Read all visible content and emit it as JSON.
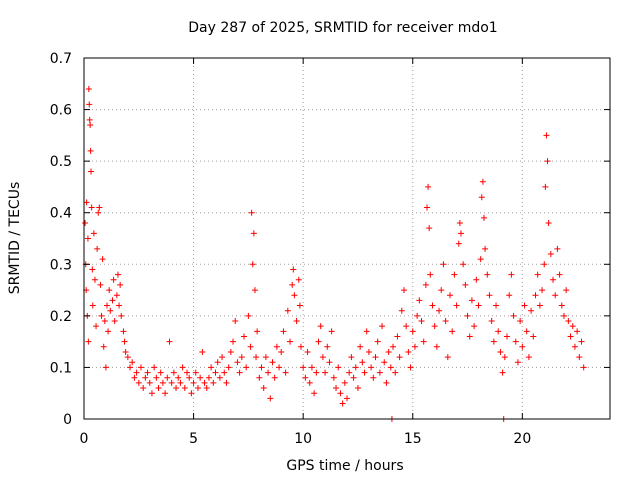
{
  "chart_data": {
    "type": "scatter",
    "title": "Day 287 of 2025, SRMTID for receiver mdo1",
    "xlabel": "GPS time / hours",
    "ylabel": "SRMTID / TECUs",
    "xlim": [
      0,
      24
    ],
    "ylim": [
      0,
      0.7
    ],
    "xticks": [
      0,
      5,
      10,
      15,
      20
    ],
    "xtick_labels": [
      "0",
      "5",
      "10",
      "15",
      "20"
    ],
    "yticks": [
      0,
      0.1,
      0.2,
      0.3,
      0.4,
      0.5,
      0.6,
      0.7
    ],
    "ytick_labels": [
      "0",
      "0.1",
      "0.2",
      "0.3",
      "0.4",
      "0.5",
      "0.6",
      "0.7"
    ],
    "grid": true,
    "marker": "plus",
    "color": "#ff0000",
    "series": [
      {
        "name": "SRMTID",
        "points": [
          [
            0.05,
            0.38
          ],
          [
            0.08,
            0.3
          ],
          [
            0.1,
            0.25
          ],
          [
            0.12,
            0.42
          ],
          [
            0.15,
            0.2
          ],
          [
            0.18,
            0.35
          ],
          [
            0.2,
            0.15
          ],
          [
            0.22,
            0.64
          ],
          [
            0.24,
            0.61
          ],
          [
            0.26,
            0.58
          ],
          [
            0.28,
            0.57
          ],
          [
            0.3,
            0.52
          ],
          [
            0.32,
            0.48
          ],
          [
            0.35,
            0.41
          ],
          [
            0.38,
            0.29
          ],
          [
            0.4,
            0.22
          ],
          [
            0.45,
            0.36
          ],
          [
            0.5,
            0.27
          ],
          [
            0.55,
            0.18
          ],
          [
            0.6,
            0.33
          ],
          [
            0.65,
            0.4
          ],
          [
            0.7,
            0.41
          ],
          [
            0.75,
            0.26
          ],
          [
            0.8,
            0.2
          ],
          [
            0.85,
            0.31
          ],
          [
            0.9,
            0.14
          ],
          [
            0.95,
            0.19
          ],
          [
            1.0,
            0.1
          ],
          [
            1.05,
            0.22
          ],
          [
            1.1,
            0.17
          ],
          [
            1.15,
            0.25
          ],
          [
            1.2,
            0.21
          ],
          [
            1.3,
            0.23
          ],
          [
            1.35,
            0.27
          ],
          [
            1.4,
            0.19
          ],
          [
            1.5,
            0.24
          ],
          [
            1.55,
            0.28
          ],
          [
            1.6,
            0.22
          ],
          [
            1.65,
            0.26
          ],
          [
            1.7,
            0.2
          ],
          [
            1.8,
            0.17
          ],
          [
            1.85,
            0.15
          ],
          [
            1.9,
            0.13
          ],
          [
            2.0,
            0.12
          ],
          [
            2.1,
            0.1
          ],
          [
            2.2,
            0.11
          ],
          [
            2.3,
            0.08
          ],
          [
            2.4,
            0.09
          ],
          [
            2.5,
            0.07
          ],
          [
            2.6,
            0.1
          ],
          [
            2.7,
            0.06
          ],
          [
            2.8,
            0.08
          ],
          [
            2.9,
            0.09
          ],
          [
            3.0,
            0.07
          ],
          [
            3.1,
            0.05
          ],
          [
            3.2,
            0.1
          ],
          [
            3.3,
            0.08
          ],
          [
            3.4,
            0.06
          ],
          [
            3.5,
            0.09
          ],
          [
            3.6,
            0.07
          ],
          [
            3.7,
            0.05
          ],
          [
            3.8,
            0.08
          ],
          [
            3.9,
            0.15
          ],
          [
            4.0,
            0.07
          ],
          [
            4.1,
            0.09
          ],
          [
            4.2,
            0.06
          ],
          [
            4.3,
            0.08
          ],
          [
            4.4,
            0.07
          ],
          [
            4.5,
            0.1
          ],
          [
            4.6,
            0.06
          ],
          [
            4.7,
            0.09
          ],
          [
            4.8,
            0.08
          ],
          [
            4.9,
            0.05
          ],
          [
            5.0,
            0.07
          ],
          [
            5.1,
            0.09
          ],
          [
            5.2,
            0.06
          ],
          [
            5.3,
            0.08
          ],
          [
            5.4,
            0.13
          ],
          [
            5.5,
            0.07
          ],
          [
            5.6,
            0.06
          ],
          [
            5.7,
            0.08
          ],
          [
            5.8,
            0.1
          ],
          [
            5.9,
            0.07
          ],
          [
            6.0,
            0.09
          ],
          [
            6.1,
            0.11
          ],
          [
            6.2,
            0.08
          ],
          [
            6.3,
            0.12
          ],
          [
            6.4,
            0.09
          ],
          [
            6.5,
            0.07
          ],
          [
            6.6,
            0.1
          ],
          [
            6.7,
            0.13
          ],
          [
            6.8,
            0.15
          ],
          [
            6.9,
            0.19
          ],
          [
            7.0,
            0.11
          ],
          [
            7.1,
            0.09
          ],
          [
            7.2,
            0.12
          ],
          [
            7.3,
            0.16
          ],
          [
            7.4,
            0.1
          ],
          [
            7.5,
            0.2
          ],
          [
            7.6,
            0.14
          ],
          [
            7.65,
            0.4
          ],
          [
            7.7,
            0.3
          ],
          [
            7.75,
            0.36
          ],
          [
            7.8,
            0.25
          ],
          [
            7.85,
            0.12
          ],
          [
            7.9,
            0.17
          ],
          [
            8.0,
            0.08
          ],
          [
            8.1,
            0.1
          ],
          [
            8.2,
            0.06
          ],
          [
            8.3,
            0.12
          ],
          [
            8.4,
            0.09
          ],
          [
            8.5,
            0.04
          ],
          [
            8.6,
            0.11
          ],
          [
            8.7,
            0.08
          ],
          [
            8.8,
            0.14
          ],
          [
            8.9,
            0.1
          ],
          [
            9.0,
            0.13
          ],
          [
            9.1,
            0.17
          ],
          [
            9.2,
            0.09
          ],
          [
            9.3,
            0.21
          ],
          [
            9.4,
            0.15
          ],
          [
            9.5,
            0.26
          ],
          [
            9.55,
            0.29
          ],
          [
            9.6,
            0.24
          ],
          [
            9.7,
            0.19
          ],
          [
            9.8,
            0.27
          ],
          [
            9.85,
            0.22
          ],
          [
            9.9,
            0.14
          ],
          [
            10.0,
            0.1
          ],
          [
            10.1,
            0.08
          ],
          [
            10.2,
            0.13
          ],
          [
            10.3,
            0.07
          ],
          [
            10.4,
            0.1
          ],
          [
            10.5,
            0.05
          ],
          [
            10.6,
            0.09
          ],
          [
            10.7,
            0.15
          ],
          [
            10.8,
            0.18
          ],
          [
            10.9,
            0.12
          ],
          [
            11.0,
            0.09
          ],
          [
            11.1,
            0.14
          ],
          [
            11.2,
            0.11
          ],
          [
            11.3,
            0.17
          ],
          [
            11.4,
            0.08
          ],
          [
            11.5,
            0.06
          ],
          [
            11.6,
            0.1
          ],
          [
            11.7,
            0.05
          ],
          [
            11.8,
            0.03
          ],
          [
            11.9,
            0.07
          ],
          [
            12.0,
            0.04
          ],
          [
            12.1,
            0.09
          ],
          [
            12.2,
            0.12
          ],
          [
            12.3,
            0.08
          ],
          [
            12.4,
            0.1
          ],
          [
            12.5,
            0.06
          ],
          [
            12.6,
            0.14
          ],
          [
            12.7,
            0.11
          ],
          [
            12.8,
            0.09
          ],
          [
            12.9,
            0.17
          ],
          [
            13.0,
            0.13
          ],
          [
            13.1,
            0.1
          ],
          [
            13.2,
            0.08
          ],
          [
            13.3,
            0.12
          ],
          [
            13.4,
            0.15
          ],
          [
            13.5,
            0.09
          ],
          [
            13.6,
            0.18
          ],
          [
            13.7,
            0.11
          ],
          [
            13.8,
            0.07
          ],
          [
            13.9,
            0.13
          ],
          [
            14.0,
            0.1
          ],
          [
            14.05,
            0.0
          ],
          [
            14.1,
            0.14
          ],
          [
            14.2,
            0.09
          ],
          [
            14.3,
            0.16
          ],
          [
            14.4,
            0.12
          ],
          [
            14.5,
            0.21
          ],
          [
            14.6,
            0.25
          ],
          [
            14.7,
            0.18
          ],
          [
            14.8,
            0.13
          ],
          [
            14.9,
            0.1
          ],
          [
            15.0,
            0.17
          ],
          [
            15.1,
            0.14
          ],
          [
            15.2,
            0.2
          ],
          [
            15.3,
            0.23
          ],
          [
            15.4,
            0.19
          ],
          [
            15.5,
            0.15
          ],
          [
            15.6,
            0.26
          ],
          [
            15.65,
            0.41
          ],
          [
            15.7,
            0.45
          ],
          [
            15.75,
            0.37
          ],
          [
            15.8,
            0.28
          ],
          [
            15.9,
            0.22
          ],
          [
            16.0,
            0.18
          ],
          [
            16.1,
            0.14
          ],
          [
            16.2,
            0.21
          ],
          [
            16.3,
            0.25
          ],
          [
            16.4,
            0.3
          ],
          [
            16.5,
            0.19
          ],
          [
            16.6,
            0.12
          ],
          [
            16.7,
            0.24
          ],
          [
            16.8,
            0.17
          ],
          [
            16.9,
            0.28
          ],
          [
            17.0,
            0.22
          ],
          [
            17.1,
            0.34
          ],
          [
            17.15,
            0.38
          ],
          [
            17.2,
            0.36
          ],
          [
            17.3,
            0.3
          ],
          [
            17.4,
            0.26
          ],
          [
            17.5,
            0.2
          ],
          [
            17.6,
            0.16
          ],
          [
            17.7,
            0.23
          ],
          [
            17.8,
            0.18
          ],
          [
            17.9,
            0.27
          ],
          [
            18.0,
            0.22
          ],
          [
            18.1,
            0.31
          ],
          [
            18.15,
            0.43
          ],
          [
            18.2,
            0.46
          ],
          [
            18.25,
            0.39
          ],
          [
            18.3,
            0.33
          ],
          [
            18.4,
            0.28
          ],
          [
            18.5,
            0.24
          ],
          [
            18.6,
            0.19
          ],
          [
            18.7,
            0.15
          ],
          [
            18.8,
            0.22
          ],
          [
            18.9,
            0.17
          ],
          [
            19.0,
            0.13
          ],
          [
            19.1,
            0.09
          ],
          [
            19.15,
            0.0
          ],
          [
            19.2,
            0.12
          ],
          [
            19.3,
            0.16
          ],
          [
            19.4,
            0.24
          ],
          [
            19.5,
            0.28
          ],
          [
            19.6,
            0.2
          ],
          [
            19.7,
            0.15
          ],
          [
            19.8,
            0.11
          ],
          [
            19.9,
            0.19
          ],
          [
            20.0,
            0.14
          ],
          [
            20.1,
            0.22
          ],
          [
            20.2,
            0.17
          ],
          [
            20.3,
            0.12
          ],
          [
            20.4,
            0.21
          ],
          [
            20.5,
            0.16
          ],
          [
            20.6,
            0.24
          ],
          [
            20.7,
            0.28
          ],
          [
            20.8,
            0.22
          ],
          [
            20.9,
            0.25
          ],
          [
            21.0,
            0.3
          ],
          [
            21.05,
            0.45
          ],
          [
            21.1,
            0.55
          ],
          [
            21.15,
            0.5
          ],
          [
            21.2,
            0.38
          ],
          [
            21.3,
            0.32
          ],
          [
            21.4,
            0.27
          ],
          [
            21.5,
            0.24
          ],
          [
            21.6,
            0.33
          ],
          [
            21.7,
            0.28
          ],
          [
            21.8,
            0.22
          ],
          [
            21.9,
            0.2
          ],
          [
            22.0,
            0.25
          ],
          [
            22.1,
            0.19
          ],
          [
            22.2,
            0.16
          ],
          [
            22.3,
            0.18
          ],
          [
            22.4,
            0.14
          ],
          [
            22.5,
            0.17
          ],
          [
            22.6,
            0.12
          ],
          [
            22.7,
            0.15
          ],
          [
            22.8,
            0.1
          ]
        ]
      }
    ]
  }
}
